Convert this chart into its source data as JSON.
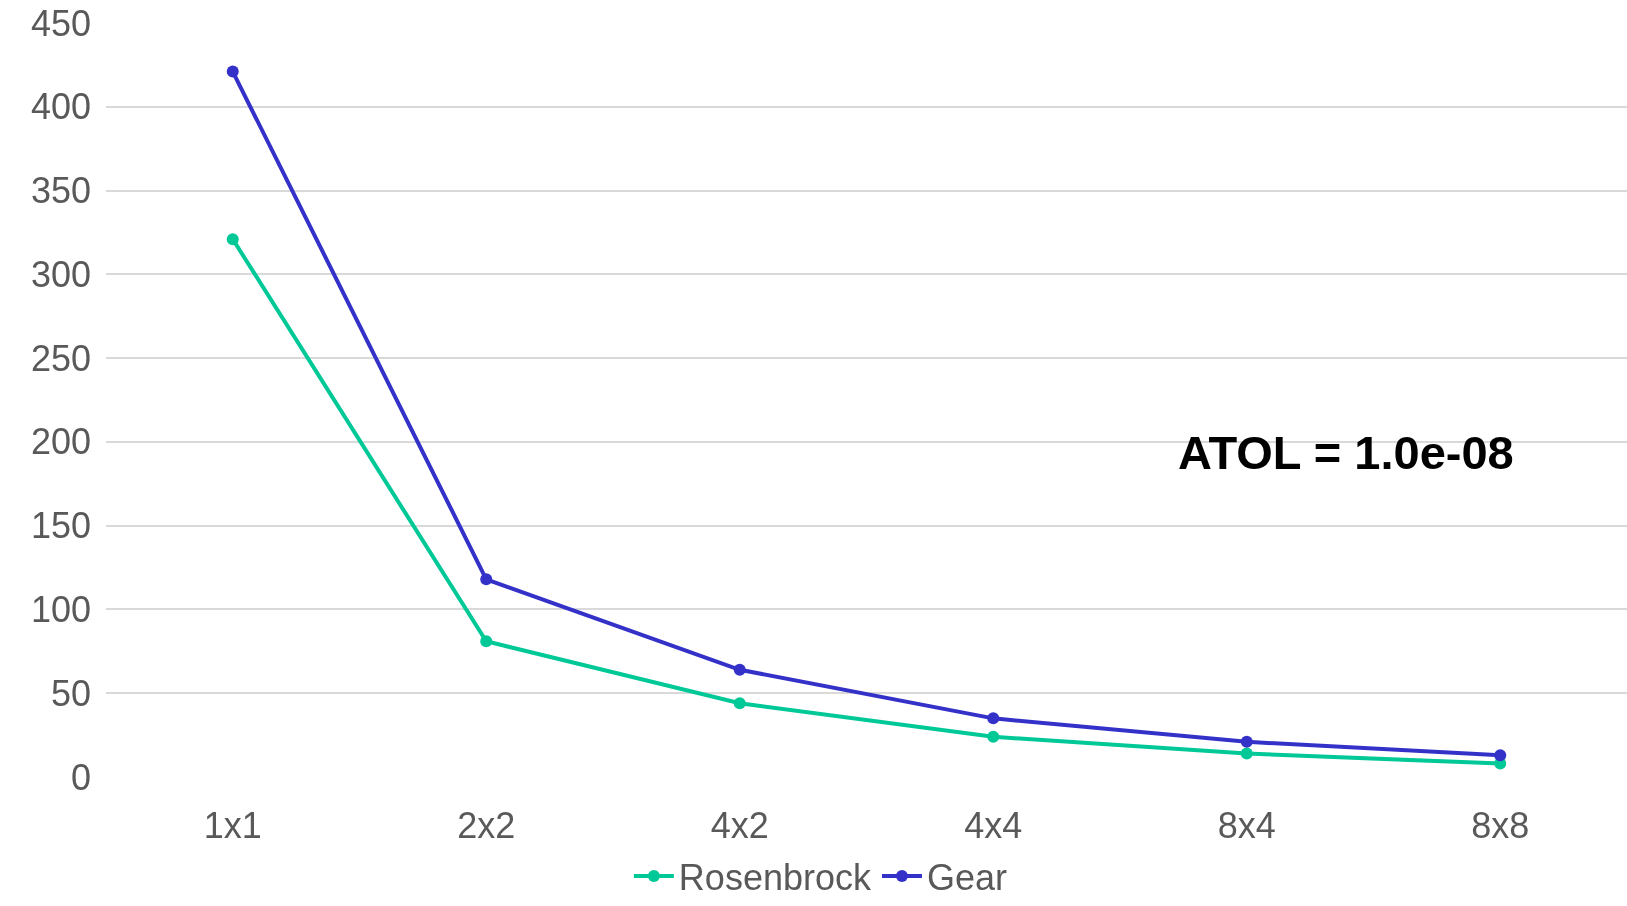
{
  "chart_data": {
    "type": "line",
    "categories": [
      "1x1",
      "2x2",
      "4x2",
      "4x4",
      "8x4",
      "8x8"
    ],
    "series": [
      {
        "name": "Rosenbrock",
        "color": "#00c897",
        "values": [
          321,
          81,
          44,
          24,
          14,
          8
        ]
      },
      {
        "name": "Gear",
        "color": "#3431c9",
        "values": [
          421,
          118,
          64,
          35,
          21,
          13
        ]
      }
    ],
    "ylim": [
      0,
      450
    ],
    "yticks": [
      0,
      50,
      100,
      150,
      200,
      250,
      300,
      350,
      400,
      450
    ],
    "annotations": [
      "ATOL = 1.0e-08"
    ],
    "grid": "y",
    "legend": "bottom",
    "marker": "circle",
    "line_style": "solid"
  }
}
